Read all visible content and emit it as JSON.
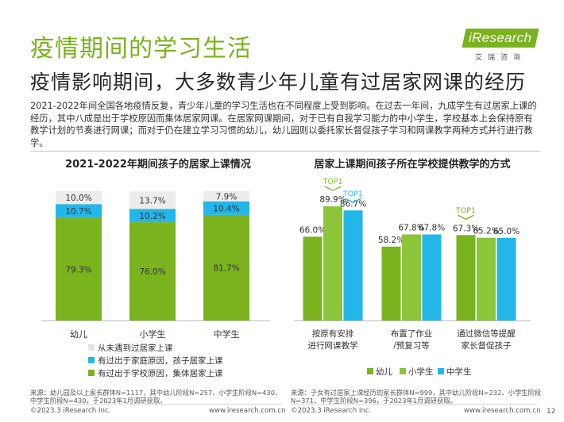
{
  "page": {
    "title": "疫情期间的学习生活",
    "subtitle": "疫情影响期间，大多数青少年儿童有过居家网课的经历",
    "intro": "2021-2022年间全国各地疫情反复，青少年儿童的学习生活也在不同程度上受到影响。在过去一年间，九成学生有过居家上课的经历，其中八成是出于学校原因而集体居家网课。在居家网课期间，对于已有自我学习能力的中小学生，学校基本上会保持原有教学计划的节奏进行网课；而对于仍在建立学习习惯的幼儿，幼儿园则以委托家长督促孩子学习和网课教学两种方式并行进行教学。",
    "logo": {
      "brand": "iResearch",
      "sub": "艾瑞咨询"
    },
    "page_number": "12"
  },
  "colors": {
    "green": "#7ab31e",
    "blue": "#23b6e8",
    "gray": "#ececec",
    "title_green": "#7ab31e"
  },
  "chart_data": [
    {
      "type": "bar",
      "stacked": true,
      "title": "2021-2022年期间孩子的居家上课情况",
      "categories": [
        "幼儿",
        "小学生",
        "中学生"
      ],
      "series": [
        {
          "name": "有过出于学校原因，集体居家上课",
          "values": [
            79.3,
            76.0,
            81.7
          ],
          "color": "#7ab31e"
        },
        {
          "name": "有过出于家庭原因，孩子居家上课",
          "values": [
            10.7,
            10.2,
            10.4
          ],
          "color": "#23b6e8"
        },
        {
          "name": "从未遇到过居家上课",
          "values": [
            10.0,
            13.7,
            7.9
          ],
          "color": "#ececec"
        }
      ],
      "ylim": [
        0,
        100
      ],
      "legend": "bottom"
    },
    {
      "type": "bar",
      "title": "居家上课期间孩子所在学校提供教学的方式",
      "categories": [
        "按原有安排\n进行网课教学",
        "布置了作业\n/预复习等",
        "通过微信等提醒\n家长督促孩子"
      ],
      "series": [
        {
          "name": "幼儿",
          "values": [
            66.0,
            58.2,
            67.3
          ],
          "color": "#7ab31e"
        },
        {
          "name": "小学生",
          "values": [
            89.9,
            67.8,
            65.2
          ],
          "color": "#8cc43a"
        },
        {
          "name": "中学生",
          "values": [
            86.7,
            67.8,
            65.0
          ],
          "color": "#23b6e8"
        }
      ],
      "annotations": [
        {
          "category": 0,
          "series": 1,
          "text": "TOP1"
        },
        {
          "category": 0,
          "series": 2,
          "text": "TOP1"
        },
        {
          "category": 2,
          "series": 0,
          "text": "TOP1"
        }
      ],
      "ylim": [
        0,
        100
      ],
      "legend": "bottom"
    }
  ],
  "footer": {
    "left_source": "来源：幼儿园及以上家长群体N=1117，其中幼儿阶段N=257、小学生阶段N=430、中学生阶段N=430，于2023年1月调研获取。",
    "right_source": "来源：子女有过居家上课经历的家长群体N=999，其中幼儿阶段N=232、小学生阶段N=371、中学生阶段N=396，于2023年1月调研获取。",
    "copyright": "©2023.3 iResearch Inc.",
    "website": "www.iresearch.com.cn"
  }
}
